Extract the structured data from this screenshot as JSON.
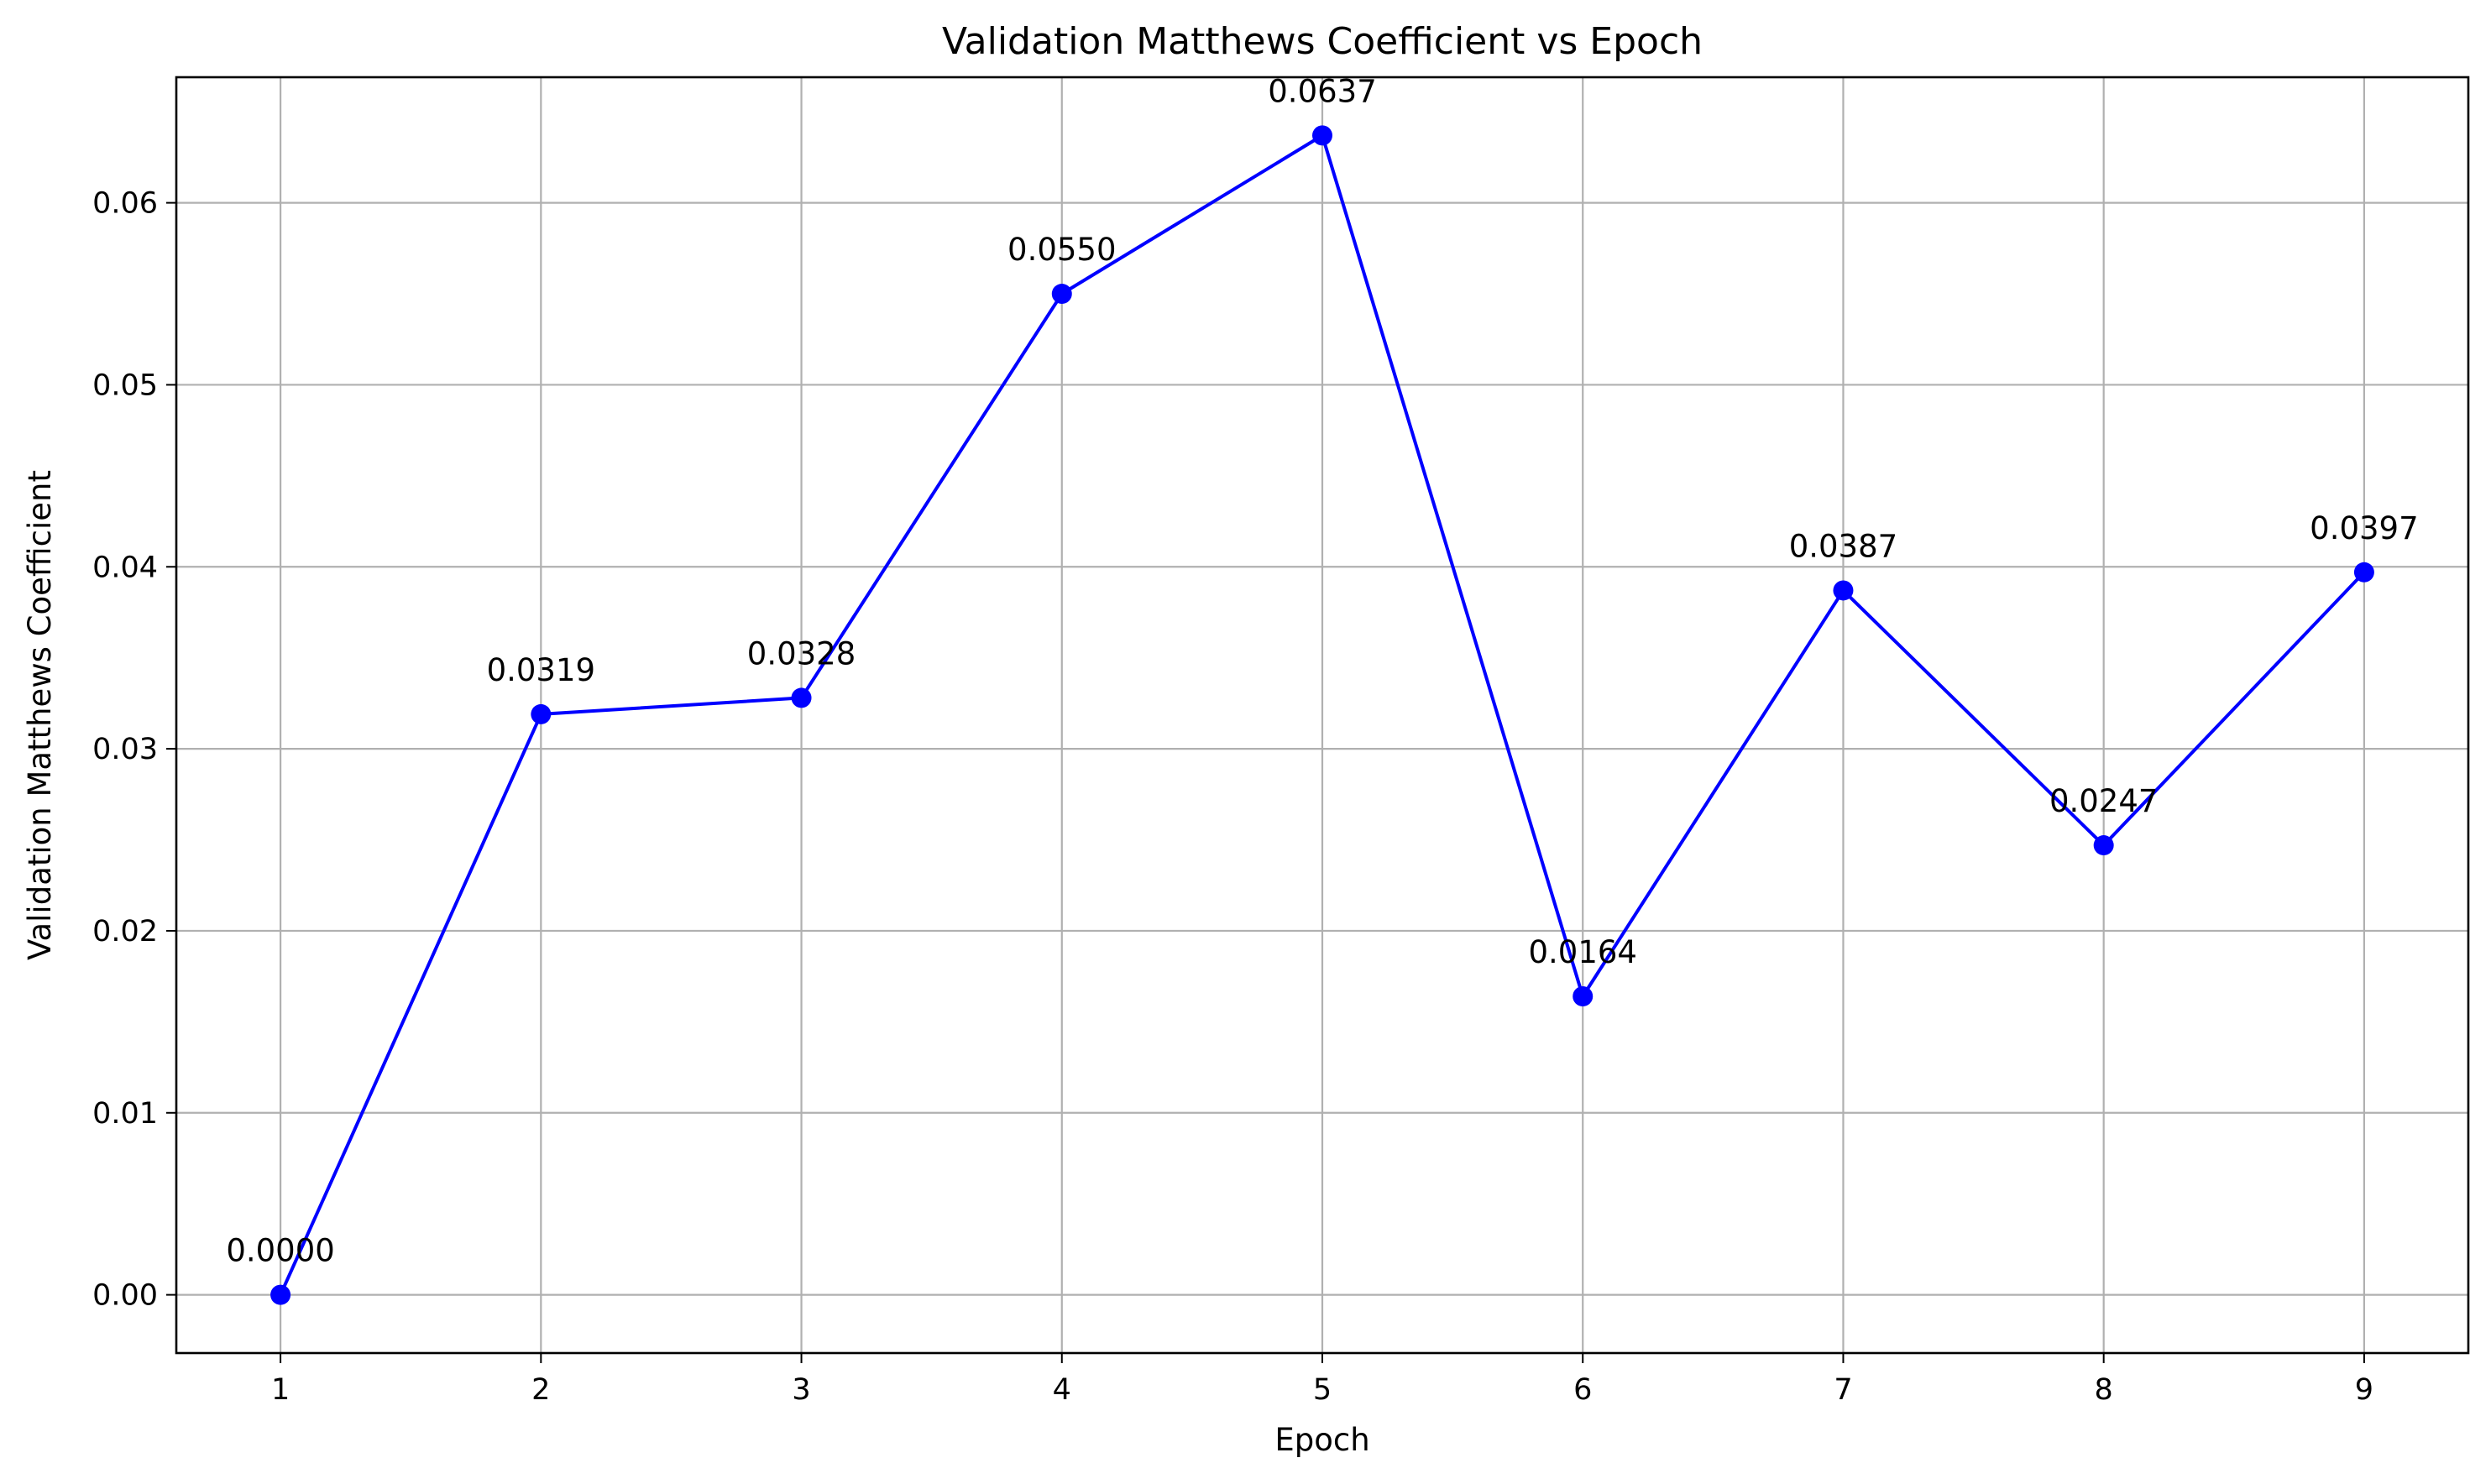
{
  "chart_data": {
    "type": "line",
    "title": "Validation Matthews Coefficient vs Epoch",
    "xlabel": "Epoch",
    "ylabel": "Validation Matthews Coefficient",
    "x": [
      1,
      2,
      3,
      4,
      5,
      6,
      7,
      8,
      9
    ],
    "series": [
      {
        "values": [
          0.0,
          0.0319,
          0.0328,
          0.055,
          0.0637,
          0.0164,
          0.0387,
          0.0247,
          0.0397
        ],
        "color": "#0000ff",
        "marker": "circle"
      }
    ],
    "data_labels": [
      "0.0000",
      "0.0319",
      "0.0328",
      "0.0550",
      "0.0637",
      "0.0164",
      "0.0387",
      "0.0247",
      "0.0397"
    ],
    "x_ticks": [
      "1",
      "2",
      "3",
      "4",
      "5",
      "6",
      "7",
      "8",
      "9"
    ],
    "y_ticks": [
      "0.00",
      "0.01",
      "0.02",
      "0.03",
      "0.04",
      "0.05",
      "0.06"
    ],
    "xlim": [
      0.6,
      9.4
    ],
    "ylim": [
      -0.0032,
      0.0669
    ],
    "grid": true,
    "legend": "none"
  }
}
